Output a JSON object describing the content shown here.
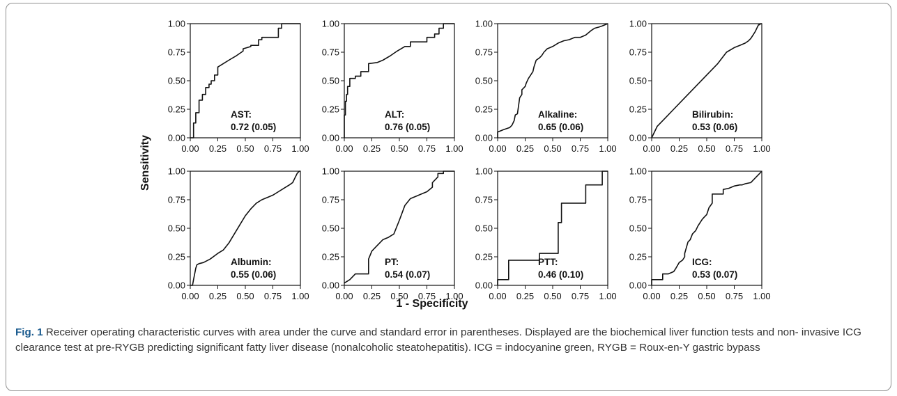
{
  "x_axis_title": "1 - Specificity",
  "y_axis_title": "Sensitivity",
  "tick_labels": [
    "0.00",
    "0.25",
    "0.50",
    "0.75",
    "1.00"
  ],
  "caption": {
    "label": "Fig. 1",
    "text": "Receiver operating characteristic curves with area under the curve and standard error in parentheses. Displayed are the biochemical liver function tests and non- invasive ICG clearance test at pre-RYGB predicting significant fatty liver disease (nonalcoholic steatohepatitis). ICG = indocyanine green, RYGB = Roux-en-Y gastric bypass"
  },
  "chart_data": [
    {
      "type": "line",
      "name": "AST:",
      "auc": "0.72 (0.05)",
      "xlim": [
        0,
        1
      ],
      "ylim": [
        0,
        1
      ],
      "x": [
        0.0,
        0.03,
        0.03,
        0.05,
        0.05,
        0.08,
        0.08,
        0.11,
        0.11,
        0.14,
        0.14,
        0.17,
        0.17,
        0.19,
        0.19,
        0.22,
        0.22,
        0.25,
        0.25,
        0.3,
        0.35,
        0.42,
        0.48,
        0.48,
        0.55,
        0.55,
        0.62,
        0.62,
        0.65,
        0.65,
        0.75,
        0.75,
        0.8,
        0.8,
        0.83,
        0.83,
        0.9,
        1.0
      ],
      "y": [
        0.0,
        0.0,
        0.13,
        0.13,
        0.22,
        0.22,
        0.33,
        0.33,
        0.38,
        0.38,
        0.44,
        0.44,
        0.47,
        0.47,
        0.5,
        0.5,
        0.55,
        0.55,
        0.62,
        0.65,
        0.68,
        0.72,
        0.76,
        0.78,
        0.8,
        0.81,
        0.81,
        0.86,
        0.86,
        0.88,
        0.88,
        0.88,
        0.88,
        0.96,
        0.96,
        1.0,
        1.0,
        1.0
      ]
    },
    {
      "type": "line",
      "name": "ALT:",
      "auc": "0.76 (0.05)",
      "xlim": [
        0,
        1
      ],
      "ylim": [
        0,
        1
      ],
      "x": [
        0.0,
        0.0,
        0.01,
        0.01,
        0.02,
        0.02,
        0.03,
        0.03,
        0.05,
        0.05,
        0.1,
        0.1,
        0.15,
        0.15,
        0.22,
        0.22,
        0.3,
        0.35,
        0.42,
        0.48,
        0.55,
        0.6,
        0.6,
        0.75,
        0.75,
        0.82,
        0.82,
        0.86,
        0.86,
        0.9,
        0.9,
        1.0
      ],
      "y": [
        0.0,
        0.2,
        0.2,
        0.32,
        0.32,
        0.38,
        0.38,
        0.45,
        0.45,
        0.52,
        0.52,
        0.54,
        0.54,
        0.58,
        0.58,
        0.65,
        0.66,
        0.68,
        0.72,
        0.76,
        0.8,
        0.8,
        0.84,
        0.84,
        0.88,
        0.88,
        0.91,
        0.91,
        0.96,
        0.96,
        1.0,
        1.0
      ]
    },
    {
      "type": "line",
      "name": "Alkaline:",
      "auc": "0.65 (0.06)",
      "xlim": [
        0,
        1
      ],
      "ylim": [
        0,
        1
      ],
      "x": [
        0.0,
        0.0,
        0.05,
        0.08,
        0.11,
        0.13,
        0.15,
        0.16,
        0.18,
        0.2,
        0.22,
        0.22,
        0.25,
        0.26,
        0.28,
        0.3,
        0.32,
        0.33,
        0.34,
        0.35,
        0.38,
        0.4,
        0.42,
        0.45,
        0.5,
        0.55,
        0.6,
        0.65,
        0.7,
        0.75,
        0.8,
        0.85,
        0.88,
        0.92,
        0.95,
        1.0
      ],
      "y": [
        0.0,
        0.05,
        0.07,
        0.08,
        0.09,
        0.11,
        0.15,
        0.2,
        0.21,
        0.35,
        0.38,
        0.42,
        0.45,
        0.48,
        0.52,
        0.55,
        0.58,
        0.62,
        0.65,
        0.68,
        0.7,
        0.72,
        0.75,
        0.78,
        0.8,
        0.83,
        0.85,
        0.86,
        0.88,
        0.88,
        0.9,
        0.94,
        0.96,
        0.97,
        0.98,
        1.0
      ]
    },
    {
      "type": "line",
      "name": "Bilirubin:",
      "auc": "0.53 (0.06)",
      "xlim": [
        0,
        1
      ],
      "ylim": [
        0,
        1
      ],
      "x": [
        0.0,
        0.05,
        0.1,
        0.2,
        0.3,
        0.4,
        0.5,
        0.6,
        0.68,
        0.75,
        0.8,
        0.85,
        0.88,
        0.9,
        0.92,
        0.94,
        0.95,
        0.96,
        0.97,
        0.98,
        0.99,
        1.0
      ],
      "y": [
        0.0,
        0.1,
        0.15,
        0.25,
        0.35,
        0.45,
        0.55,
        0.65,
        0.75,
        0.79,
        0.81,
        0.83,
        0.85,
        0.87,
        0.9,
        0.93,
        0.95,
        0.97,
        0.99,
        0.99,
        1.0,
        1.0
      ]
    },
    {
      "type": "line",
      "name": "Albumin:",
      "auc": "0.55 (0.06)",
      "xlim": [
        0,
        1
      ],
      "ylim": [
        0,
        1
      ],
      "x": [
        0.0,
        0.02,
        0.03,
        0.04,
        0.05,
        0.06,
        0.08,
        0.12,
        0.18,
        0.25,
        0.3,
        0.35,
        0.4,
        0.45,
        0.5,
        0.55,
        0.6,
        0.65,
        0.7,
        0.75,
        0.8,
        0.85,
        0.9,
        0.93,
        0.94,
        0.95,
        0.96,
        0.97,
        0.98,
        0.99,
        1.0
      ],
      "y": [
        0.0,
        0.0,
        0.05,
        0.1,
        0.15,
        0.18,
        0.19,
        0.2,
        0.23,
        0.28,
        0.31,
        0.37,
        0.45,
        0.53,
        0.61,
        0.67,
        0.72,
        0.75,
        0.77,
        0.79,
        0.82,
        0.85,
        0.88,
        0.9,
        0.92,
        0.94,
        0.96,
        0.98,
        0.99,
        1.0,
        1.0
      ]
    },
    {
      "type": "line",
      "name": "PT:",
      "auc": "0.54 (0.07)",
      "xlim": [
        0,
        1
      ],
      "ylim": [
        0,
        1
      ],
      "x": [
        0.0,
        0.05,
        0.1,
        0.2,
        0.22,
        0.22,
        0.25,
        0.3,
        0.35,
        0.4,
        0.45,
        0.5,
        0.55,
        0.6,
        0.65,
        0.7,
        0.75,
        0.8,
        0.8,
        0.85,
        0.85,
        0.9,
        0.9,
        0.95,
        1.0
      ],
      "y": [
        0.02,
        0.05,
        0.1,
        0.1,
        0.1,
        0.23,
        0.3,
        0.35,
        0.4,
        0.42,
        0.45,
        0.57,
        0.7,
        0.76,
        0.78,
        0.8,
        0.82,
        0.86,
        0.9,
        0.95,
        0.98,
        0.98,
        1.0,
        1.0,
        1.0
      ],
      "note": "stepped"
    },
    {
      "type": "line",
      "name": "PTT:",
      "auc": "0.46 (0.10)",
      "xlim": [
        0,
        1
      ],
      "ylim": [
        0,
        1
      ],
      "x": [
        0.0,
        0.0,
        0.1,
        0.1,
        0.38,
        0.38,
        0.55,
        0.55,
        0.58,
        0.58,
        0.8,
        0.8,
        0.95,
        0.95,
        1.0
      ],
      "y": [
        0.0,
        0.05,
        0.05,
        0.22,
        0.22,
        0.28,
        0.28,
        0.55,
        0.55,
        0.72,
        0.72,
        0.88,
        0.88,
        1.0,
        1.0
      ]
    },
    {
      "type": "line",
      "name": "ICG:",
      "auc": "0.53 (0.07)",
      "xlim": [
        0,
        1
      ],
      "ylim": [
        0,
        1
      ],
      "x": [
        0.0,
        0.0,
        0.1,
        0.1,
        0.15,
        0.2,
        0.22,
        0.25,
        0.28,
        0.3,
        0.3,
        0.33,
        0.35,
        0.37,
        0.4,
        0.42,
        0.44,
        0.46,
        0.48,
        0.5,
        0.52,
        0.55,
        0.55,
        0.65,
        0.65,
        0.7,
        0.75,
        0.8,
        0.82,
        0.85,
        0.9,
        0.92,
        0.95,
        0.97,
        1.0
      ],
      "y": [
        0.0,
        0.05,
        0.05,
        0.1,
        0.1,
        0.12,
        0.15,
        0.2,
        0.22,
        0.25,
        0.28,
        0.38,
        0.4,
        0.45,
        0.48,
        0.52,
        0.55,
        0.58,
        0.6,
        0.62,
        0.68,
        0.72,
        0.8,
        0.8,
        0.84,
        0.85,
        0.87,
        0.88,
        0.88,
        0.89,
        0.9,
        0.92,
        0.95,
        0.97,
        1.0
      ]
    }
  ]
}
